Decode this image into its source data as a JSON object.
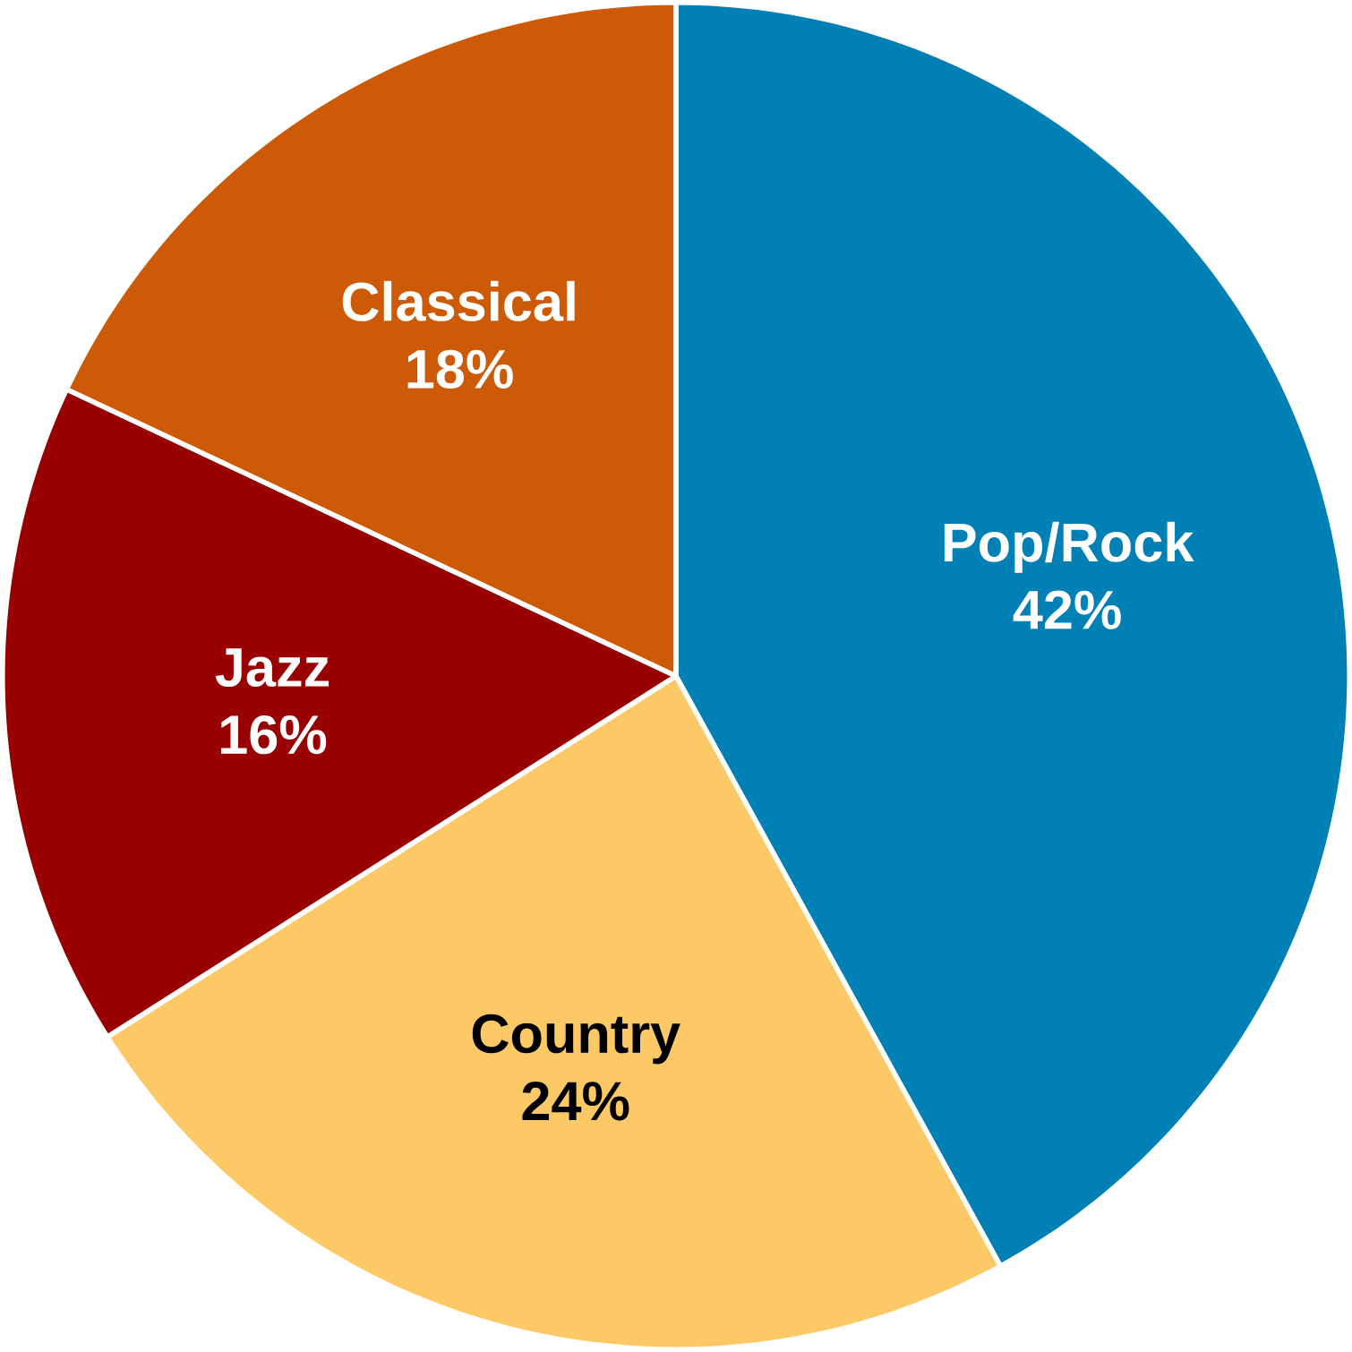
{
  "chart_data": {
    "type": "pie",
    "categories": [
      "Pop/Rock",
      "Country",
      "Jazz",
      "Classical"
    ],
    "values": [
      42,
      24,
      16,
      18
    ],
    "value_labels": [
      "42%",
      "24%",
      "16%",
      "18%"
    ],
    "colors": [
      "#0080b4",
      "#fdc966",
      "#990000",
      "#cc5a06"
    ]
  }
}
